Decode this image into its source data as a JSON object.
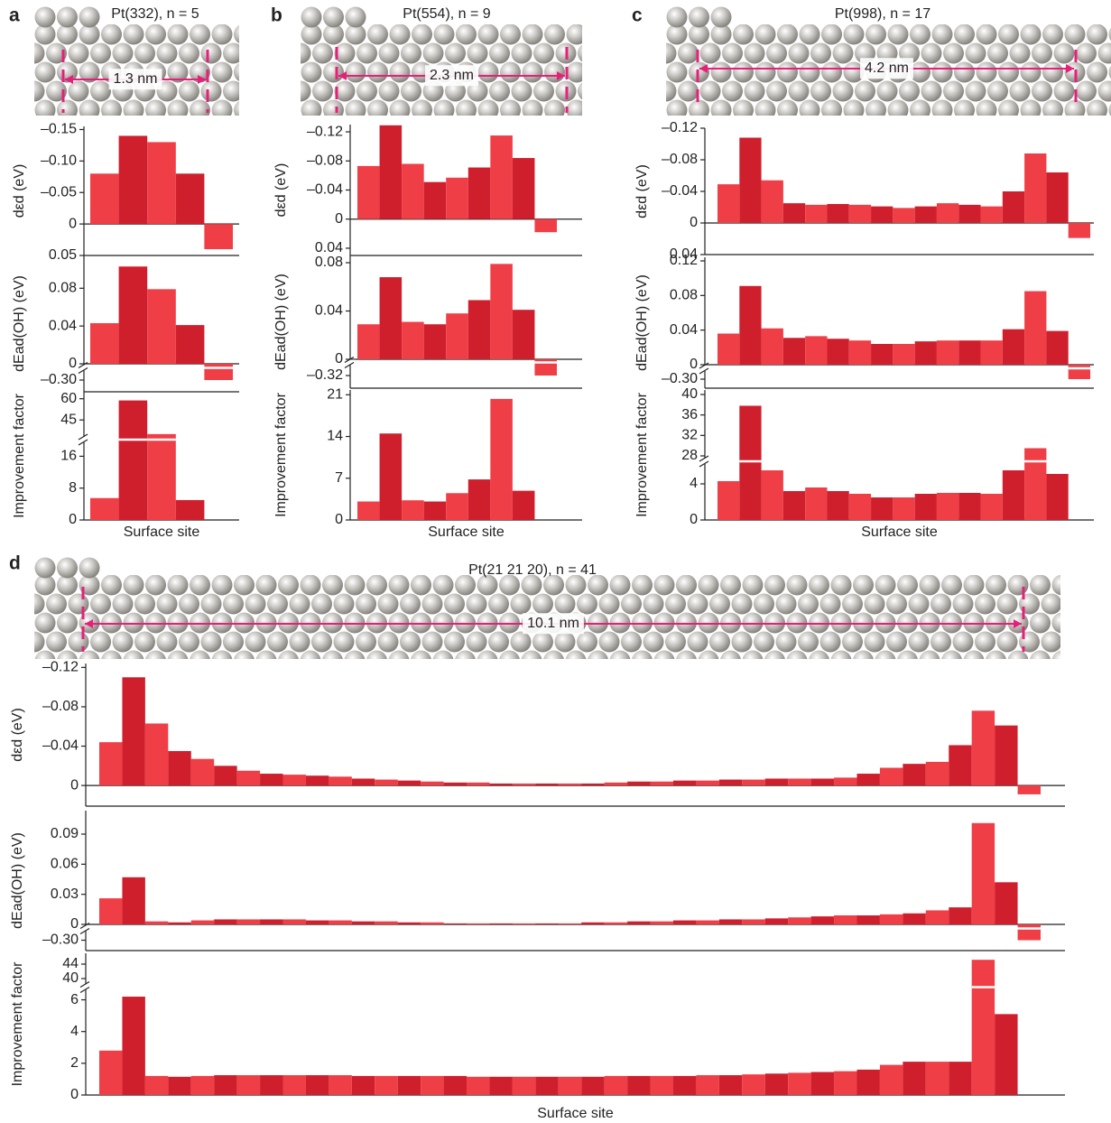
{
  "chart_data": [
    {
      "type": "bar",
      "label": "a",
      "title": "Pt(332), n = 5",
      "scale_label": "1.3 nm",
      "x_label": "Surface site",
      "colors": [
        "#ef3e46",
        "#d01f2c"
      ],
      "subplots": [
        {
          "y_label": "dεd (eV)",
          "values": [
            -0.08,
            -0.14,
            -0.13,
            -0.08,
            0.04
          ],
          "ylim": [
            0.05,
            -0.155
          ],
          "yticks": [
            {
              "value": -0.15,
              "label": "–0.15"
            },
            {
              "value": -0.1,
              "label": "–0.10"
            },
            {
              "value": -0.05,
              "label": "–0.05"
            },
            0,
            0.05
          ]
        },
        {
          "y_label": "dEad(OH) (eV)",
          "values": [
            0.043,
            0.103,
            0.079,
            0.041,
            -0.3
          ],
          "segments": [
            {
              "ylim": [
                0,
                0.108
              ],
              "yticks": [
                0,
                0.04,
                0.08
              ]
            },
            {
              "ylim": [
                -0.31,
                -0.29
              ],
              "yticks": [
                {
                  "value": -0.3,
                  "label": "–0.30"
                }
              ]
            }
          ]
        },
        {
          "y_label": "Improvement factor",
          "values": [
            5.5,
            58.8,
            35,
            5,
            null
          ],
          "segments": [
            {
              "ylim": [
                33,
                63
              ],
              "yticks": [
                45,
                60
              ]
            },
            {
              "ylim": [
                0,
                19.5
              ],
              "yticks": [
                0,
                8,
                16
              ]
            }
          ]
        }
      ]
    },
    {
      "type": "bar",
      "label": "b",
      "title": "Pt(554), n = 9",
      "scale_label": "2.3 nm",
      "x_label": "Surface site",
      "colors": [
        "#ef3e46",
        "#d01f2c"
      ],
      "subplots": [
        {
          "y_label": "dεd (eV)",
          "values": [
            -0.073,
            -0.129,
            -0.076,
            -0.051,
            -0.057,
            -0.071,
            -0.115,
            -0.084,
            0.018
          ],
          "ylim": [
            0.05,
            -0.13
          ],
          "yticks": [
            {
              "value": -0.12,
              "label": "–0.12"
            },
            {
              "value": -0.08,
              "label": "–0.08"
            },
            {
              "value": -0.04,
              "label": "–0.04"
            },
            0,
            0.04
          ]
        },
        {
          "y_label": "dEad(OH) (eV)",
          "values": [
            0.029,
            0.068,
            0.031,
            0.029,
            0.038,
            0.049,
            0.079,
            0.041,
            -0.32
          ],
          "segments": [
            {
              "ylim": [
                0,
                0.083
              ],
              "yticks": [
                0,
                0.04,
                0.08
              ]
            },
            {
              "ylim": [
                -0.335,
                -0.305
              ],
              "yticks": [
                {
                  "value": -0.32,
                  "label": "–0.32"
                }
              ]
            }
          ]
        },
        {
          "y_label": "Improvement factor",
          "values": [
            3.1,
            14.5,
            3.3,
            3.1,
            4.5,
            6.8,
            20.3,
            4.9,
            null
          ],
          "ylim": [
            0,
            21.8
          ],
          "yticks": [
            0,
            7,
            14,
            21
          ]
        }
      ]
    },
    {
      "type": "bar",
      "label": "c",
      "title": "Pt(998), n = 17",
      "scale_label": "4.2 nm",
      "x_label": "Surface site",
      "colors": [
        "#ef3e46",
        "#d01f2c"
      ],
      "subplots": [
        {
          "y_label": "dεd (eV)",
          "values": [
            -0.049,
            -0.108,
            -0.054,
            -0.025,
            -0.023,
            -0.024,
            -0.023,
            -0.021,
            -0.019,
            -0.021,
            -0.025,
            -0.023,
            -0.021,
            -0.04,
            -0.088,
            -0.064,
            0.019
          ],
          "ylim": [
            0.04,
            -0.12
          ],
          "yticks": [
            {
              "value": -0.12,
              "label": "–0.12"
            },
            {
              "value": -0.08,
              "label": "–0.08"
            },
            {
              "value": -0.04,
              "label": "–0.04"
            },
            0,
            0.04
          ]
        },
        {
          "y_label": "dEad(OH) (eV)",
          "values": [
            0.036,
            0.091,
            0.042,
            0.031,
            0.033,
            0.03,
            0.028,
            0.024,
            0.024,
            0.027,
            0.028,
            0.028,
            0.028,
            0.041,
            0.085,
            0.039,
            -0.3
          ],
          "segments": [
            {
              "ylim": [
                0,
                0.12
              ],
              "yticks": [
                0,
                0.04,
                0.08,
                0.12
              ]
            },
            {
              "ylim": [
                -0.315,
                -0.285
              ],
              "yticks": [
                {
                  "value": -0.3,
                  "label": "–0.30"
                }
              ]
            }
          ]
        },
        {
          "y_label": "Improvement factor",
          "values": [
            4.3,
            37.8,
            5.5,
            3.2,
            3.6,
            3.2,
            2.9,
            2.5,
            2.5,
            2.9,
            3.0,
            3.0,
            2.9,
            5.5,
            29.5,
            5.1,
            null
          ],
          "segments": [
            {
              "ylim": [
                28,
                40
              ],
              "yticks": [
                28,
                32,
                36,
                40
              ]
            },
            {
              "ylim": [
                0,
                5.9
              ],
              "yticks": [
                0,
                4
              ]
            }
          ]
        }
      ]
    },
    {
      "type": "bar",
      "label": "d",
      "title": "Pt(21 21 20), n = 41",
      "scale_label": "10.1 nm",
      "x_label": "Surface site",
      "colors": [
        "#ef3e46",
        "#d01f2c"
      ],
      "subplots": [
        {
          "y_label": "dεd (eV)",
          "values": [
            -0.044,
            -0.11,
            -0.063,
            -0.035,
            -0.027,
            -0.02,
            -0.015,
            -0.012,
            -0.011,
            -0.01,
            -0.009,
            -0.007,
            -0.006,
            -0.005,
            -0.004,
            -0.003,
            -0.003,
            -0.002,
            -0.002,
            -0.002,
            -0.002,
            -0.002,
            -0.003,
            -0.004,
            -0.004,
            -0.005,
            -0.005,
            -0.006,
            -0.006,
            -0.007,
            -0.007,
            -0.007,
            -0.008,
            -0.012,
            -0.018,
            -0.022,
            -0.024,
            -0.041,
            -0.076,
            -0.061,
            0.009
          ],
          "ylim": [
            0.021,
            -0.124
          ],
          "yticks": [
            {
              "value": -0.12,
              "label": "–0.12"
            },
            {
              "value": -0.08,
              "label": "–0.08"
            },
            {
              "value": -0.04,
              "label": "–0.04"
            },
            0
          ]
        },
        {
          "y_label": "dEad(OH) (eV)",
          "values": [
            0.026,
            0.047,
            0.003,
            0.002,
            0.004,
            0.005,
            0.005,
            0.005,
            0.005,
            0.004,
            0.004,
            0.003,
            0.003,
            0.002,
            0.002,
            0.001,
            0.001,
            0.001,
            0.001,
            0.001,
            0.001,
            0.002,
            0.002,
            0.003,
            0.003,
            0.004,
            0.004,
            0.005,
            0.005,
            0.006,
            0.007,
            0.008,
            0.009,
            0.009,
            0.01,
            0.011,
            0.014,
            0.017,
            0.101,
            0.042,
            -0.3
          ],
          "segments": [
            {
              "ylim": [
                0,
                0.108
              ],
              "yticks": [
                0,
                0.03,
                0.06,
                0.09
              ]
            },
            {
              "ylim": [
                -0.31,
                -0.29
              ],
              "yticks": [
                {
                  "value": -0.3,
                  "label": "–0.30"
                }
              ]
            }
          ]
        },
        {
          "y_label": "Improvement factor",
          "values": [
            2.8,
            6.2,
            1.2,
            1.15,
            1.2,
            1.25,
            1.25,
            1.25,
            1.25,
            1.25,
            1.25,
            1.2,
            1.2,
            1.2,
            1.2,
            1.2,
            1.15,
            1.15,
            1.15,
            1.15,
            1.15,
            1.15,
            1.2,
            1.2,
            1.2,
            1.2,
            1.25,
            1.25,
            1.3,
            1.35,
            1.4,
            1.45,
            1.5,
            1.6,
            1.9,
            2.1,
            2.1,
            2.1,
            45.2,
            5.1,
            null
          ],
          "segments": [
            {
              "ylim": [
                38.5,
                45.5
              ],
              "yticks": [
                40,
                44
              ]
            },
            {
              "ylim": [
                0,
                6.6
              ],
              "yticks": [
                0,
                2,
                4,
                6
              ]
            }
          ]
        }
      ]
    }
  ]
}
